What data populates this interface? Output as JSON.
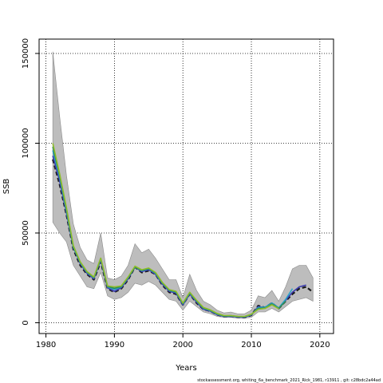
{
  "chart_data": {
    "type": "line",
    "title": "",
    "xlabel": "Years",
    "ylabel": "SSB",
    "xlim": [
      1979,
      2022
    ],
    "ylim": [
      -6000,
      158000
    ],
    "x_ticks": [
      1980,
      1990,
      2000,
      2010,
      2020
    ],
    "y_ticks": [
      0,
      50000,
      100000,
      150000
    ],
    "grid": true,
    "grid_style": "dotted",
    "band": {
      "x": [
        1981,
        1982,
        1983,
        1984,
        1985,
        1986,
        1987,
        1988,
        1989,
        1990,
        1991,
        1992,
        1993,
        1994,
        1995,
        1996,
        1997,
        1998,
        1999,
        2000,
        2001,
        2002,
        2003,
        2004,
        2005,
        2006,
        2007,
        2008,
        2009,
        2010,
        2011,
        2012,
        2013,
        2014,
        2015,
        2016,
        2017,
        2018,
        2019
      ],
      "upper": [
        151000,
        115000,
        82000,
        55000,
        42000,
        35000,
        33000,
        50000,
        25000,
        24000,
        26000,
        32000,
        44000,
        39000,
        41000,
        36000,
        30000,
        24000,
        24000,
        14000,
        27000,
        18000,
        12000,
        10000,
        7000,
        5500,
        6000,
        5000,
        5000,
        7000,
        15000,
        14000,
        18000,
        12000,
        20000,
        30000,
        32000,
        32000,
        25000
      ],
      "lower": [
        56000,
        50000,
        45000,
        32000,
        26000,
        20000,
        19000,
        28000,
        15000,
        13000,
        14000,
        17000,
        22000,
        21000,
        23000,
        21000,
        17000,
        13000,
        12000,
        7000,
        12000,
        9000,
        6000,
        5000,
        3500,
        3000,
        3000,
        2500,
        2500,
        3000,
        6000,
        6000,
        8000,
        6000,
        9000,
        12000,
        13000,
        14000,
        12000
      ]
    },
    "series": [
      {
        "color": "#1a1a1a",
        "values": [
          91000,
          77000,
          60000,
          41000,
          32000,
          27000,
          24000,
          34000,
          19000,
          17000,
          19000,
          24000,
          31000,
          28000,
          29000,
          27000,
          21000,
          17000,
          16000,
          10000,
          16000,
          11000,
          7500,
          6500,
          4500,
          3500,
          3600,
          3200,
          3000,
          4200,
          9500,
          8500,
          11000,
          8000,
          12000,
          16000,
          19000,
          20000,
          17000
        ]
      },
      {
        "color": "#3b3bb0",
        "values": [
          93000,
          79000,
          61000,
          42000,
          33000,
          27500,
          24500,
          35000,
          19500,
          17500,
          19500,
          24500,
          31000,
          28500,
          29500,
          27000,
          21500,
          17500,
          16500,
          10000,
          16000,
          11500,
          7500,
          6500,
          4500,
          3500,
          3600,
          3200,
          3100,
          4300,
          9000,
          8500,
          11000,
          8000,
          12500,
          17000,
          20000,
          21000
        ]
      },
      {
        "color": "#2aa3c9",
        "values": [
          96000,
          81000,
          62000,
          42000,
          33500,
          28000,
          25000,
          35500,
          20000,
          18500,
          20000,
          25000,
          31000,
          29000,
          30000,
          27500,
          22000,
          18000,
          17000,
          10500,
          16500,
          12000,
          8000,
          6800,
          4800,
          3700,
          3800,
          3400,
          3300,
          4500,
          8500,
          8700,
          11000,
          8300,
          13000,
          19000
        ]
      },
      {
        "color": "#2e8b57",
        "values": [
          98000,
          82000,
          63000,
          42500,
          33800,
          28200,
          25200,
          35800,
          20200,
          19200,
          20200,
          25200,
          31000,
          29200,
          30200,
          27800,
          22200,
          18200,
          17200,
          10700,
          16700,
          12200,
          8200,
          7000,
          5000,
          3800,
          3900,
          3500,
          3400,
          4600,
          8000,
          8200,
          10500,
          8000,
          12000
        ]
      },
      {
        "color": "#8dbd2a",
        "values": [
          100000,
          83000,
          64000,
          43000,
          34000,
          28500,
          25500,
          36000,
          20500,
          20000,
          20500,
          25500,
          31500,
          29500,
          30500,
          28000,
          22500,
          18500,
          17500,
          11000,
          17000,
          12500,
          8500,
          7200,
          5200,
          4000,
          4000,
          3600,
          3500,
          4800,
          7500,
          8000,
          10000,
          7800
        ]
      }
    ]
  },
  "footer": "stockassessment.org, whiting_6a_benchmark_2021_Rick_1981, r13911 , git: c28bdc2a44ad"
}
